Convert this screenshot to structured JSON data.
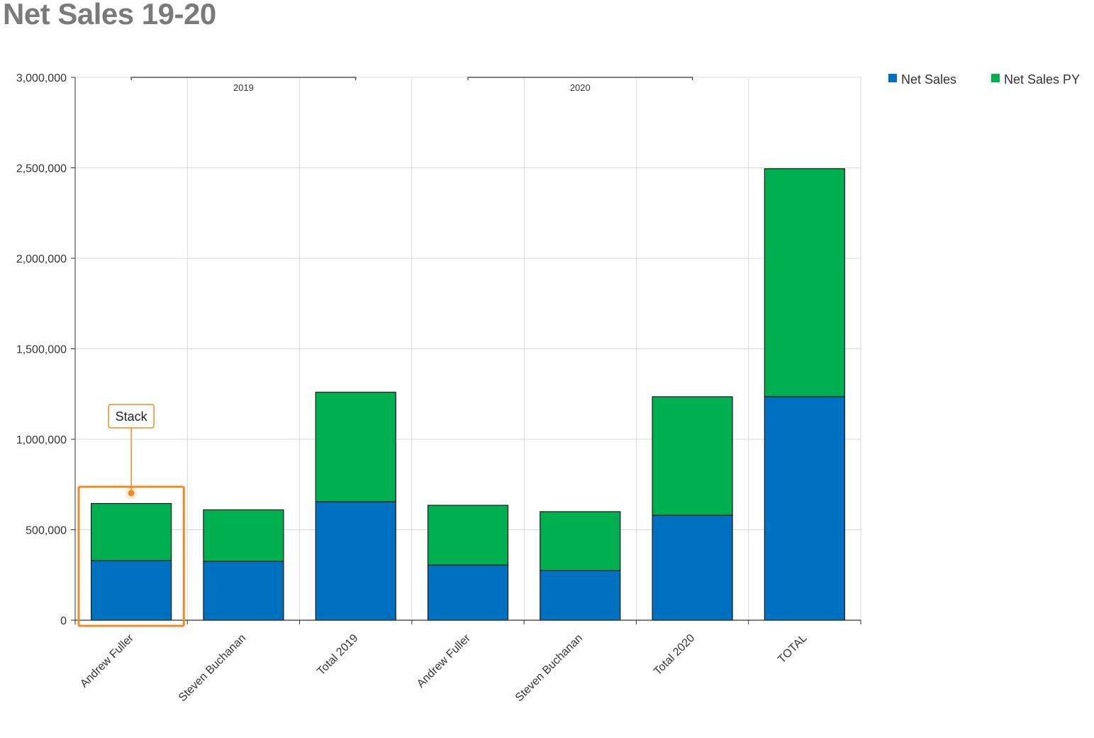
{
  "title": "Net Sales 19-20",
  "colors": {
    "net_sales": "#0070c0",
    "net_sales_py": "#00b050",
    "highlight": "#f08a24"
  },
  "callout": {
    "label": "Stack",
    "target_index": 0
  },
  "chart_data": {
    "type": "bar",
    "stacked": true,
    "title": "Net Sales 19-20",
    "xlabel": "",
    "ylabel": "",
    "ylim": [
      0,
      3000000
    ],
    "yticks": [
      0,
      500000,
      1000000,
      1500000,
      2000000,
      2500000,
      3000000
    ],
    "ytick_labels": [
      "0",
      "500,000",
      "1,000,000",
      "1,500,000",
      "2,000,000",
      "2,500,000",
      "3,000,000"
    ],
    "grid": true,
    "legend_position": "top-right",
    "categories": [
      "Andrew Fuller",
      "Steven Buchanan",
      "Total 2019",
      "Andrew Fuller",
      "Steven Buchanan",
      "Total 2020",
      "TOTAL"
    ],
    "groups": [
      {
        "label": "2019",
        "category_indices": [
          0,
          1,
          2
        ]
      },
      {
        "label": "2020",
        "category_indices": [
          3,
          4,
          5
        ]
      }
    ],
    "series": [
      {
        "name": "Net Sales",
        "color": "#0070c0",
        "values": [
          330000,
          325000,
          655000,
          305000,
          275000,
          580000,
          1235000
        ]
      },
      {
        "name": "Net Sales PY",
        "color": "#00b050",
        "values": [
          315000,
          285000,
          605000,
          330000,
          325000,
          655000,
          1260000
        ]
      }
    ]
  }
}
